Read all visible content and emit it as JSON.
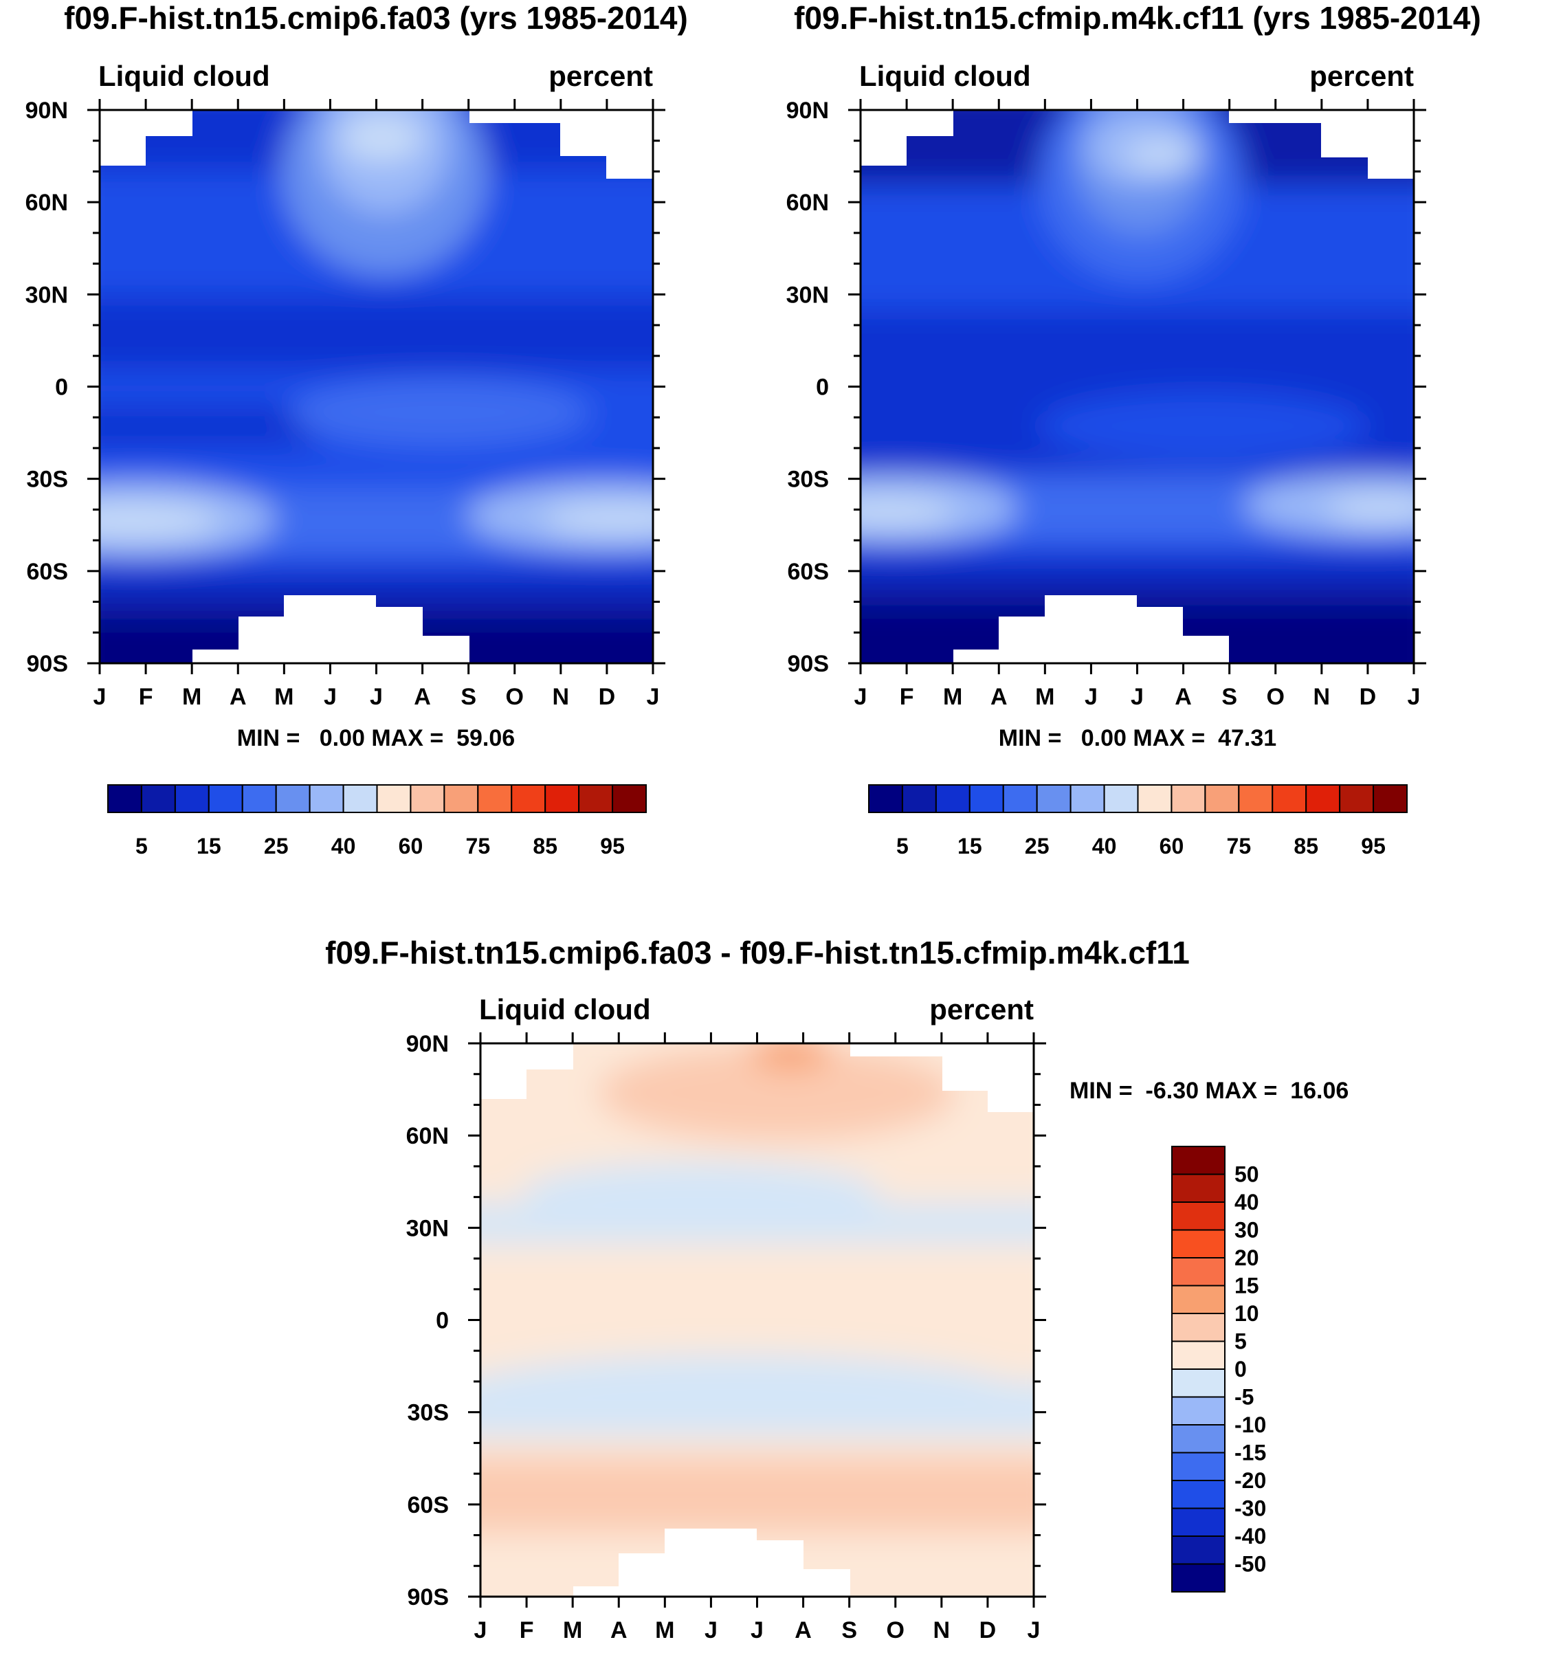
{
  "chart_data": [
    {
      "type": "heatmap",
      "title": "f09.F-hist.tn15.cmip6.fa03 (yrs 1985-2014)",
      "left_label": "Liquid cloud",
      "right_label": "percent",
      "x_ticks": [
        "J",
        "F",
        "M",
        "A",
        "M",
        "J",
        "J",
        "A",
        "S",
        "O",
        "N",
        "D",
        "J"
      ],
      "y_ticks": [
        "90N",
        "60N",
        "30N",
        "0",
        "30S",
        "60S",
        "90S"
      ],
      "stats": "MIN =   0.00 MAX =  59.06",
      "colorbar_labels": [
        "5",
        "15",
        "25",
        "40",
        "60",
        "75",
        "85",
        "95"
      ],
      "min": 0.0,
      "max": 59.06
    },
    {
      "type": "heatmap",
      "title": "f09.F-hist.tn15.cfmip.m4k.cf11 (yrs 1985-2014)",
      "left_label": "Liquid cloud",
      "right_label": "percent",
      "x_ticks": [
        "J",
        "F",
        "M",
        "A",
        "M",
        "J",
        "J",
        "A",
        "S",
        "O",
        "N",
        "D",
        "J"
      ],
      "y_ticks": [
        "90N",
        "60N",
        "30N",
        "0",
        "30S",
        "60S",
        "90S"
      ],
      "stats": "MIN =   0.00 MAX =  47.31",
      "colorbar_labels": [
        "5",
        "15",
        "25",
        "40",
        "60",
        "75",
        "85",
        "95"
      ],
      "min": 0.0,
      "max": 47.31
    },
    {
      "type": "heatmap",
      "title": "f09.F-hist.tn15.cmip6.fa03 - f09.F-hist.tn15.cfmip.m4k.cf11",
      "left_label": "Liquid cloud",
      "right_label": "percent",
      "x_ticks": [
        "J",
        "F",
        "M",
        "A",
        "M",
        "J",
        "J",
        "A",
        "S",
        "O",
        "N",
        "D",
        "J"
      ],
      "y_ticks": [
        "90N",
        "60N",
        "30N",
        "0",
        "30S",
        "60S",
        "90S"
      ],
      "stats": "MIN =  -6.30 MAX =  16.06",
      "colorbar_labels": [
        "50",
        "40",
        "30",
        "20",
        "15",
        "10",
        "5",
        "0",
        "-5",
        "-10",
        "-15",
        "-20",
        "-30",
        "-40",
        "-50"
      ],
      "min": -6.3,
      "max": 16.06
    }
  ],
  "palettes": {
    "abs": [
      "#000080",
      "#0a1aa8",
      "#1030d0",
      "#1f4ee8",
      "#3d6cf0",
      "#6890f0",
      "#9ab8f8",
      "#c8dcf8",
      "#fde6d4",
      "#fbc3a8",
      "#f8a078",
      "#f86e3c",
      "#f04018",
      "#e02008",
      "#b01808",
      "#800000"
    ],
    "diff": [
      "#000080",
      "#0a1aa8",
      "#1030d0",
      "#1f4ee8",
      "#3d6cf0",
      "#6890f0",
      "#9ab8f8",
      "#d4e6f8",
      "#fde8d8",
      "#fbcab0",
      "#f8a070",
      "#f87048",
      "#f85020",
      "#e03010",
      "#b01808",
      "#800000"
    ]
  }
}
